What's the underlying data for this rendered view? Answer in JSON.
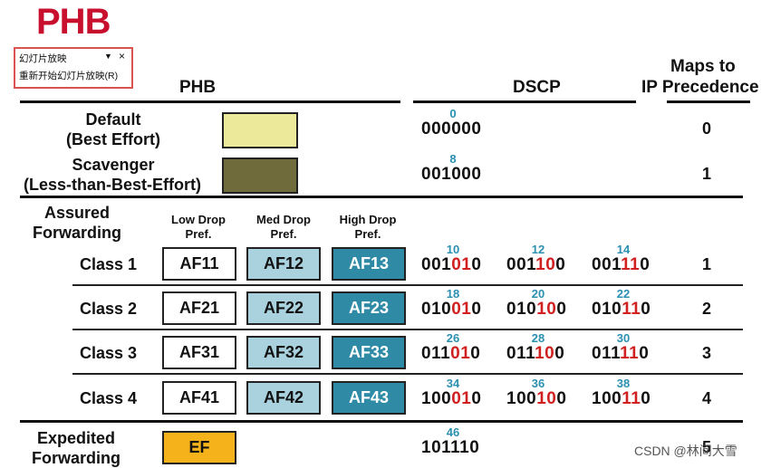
{
  "title": "PHB",
  "popup": {
    "menu": "幻灯片放映",
    "arrow": "▼",
    "close": "×",
    "restart": "重新开始幻灯片放映(R)"
  },
  "headers": {
    "phb": "PHB",
    "dscp": "DSCP",
    "maps1": "Maps to",
    "maps2": "IP Precedence"
  },
  "rows": {
    "default": {
      "l1": "Default",
      "l2": "(Best Effort)",
      "color": "#ece99a",
      "num": "0",
      "bits": "000000",
      "ip": "0"
    },
    "scavenger": {
      "l1": "Scavenger",
      "l2": "(Less-than-Best-Effort)",
      "color": "#6f6b3a",
      "num": "8",
      "bits": "001000",
      "ip": "1"
    }
  },
  "af": {
    "title1": "Assured",
    "title2": "Forwarding",
    "low1": "Low Drop",
    "low2": "Pref.",
    "med1": "Med Drop",
    "med2": "Pref.",
    "high1": "High Drop",
    "high2": "Pref.",
    "classes": [
      {
        "label": "Class 1",
        "low": "AF11",
        "med": "AF12",
        "high": "AF13",
        "n": [
          "10",
          "12",
          "14"
        ],
        "pre": [
          "001",
          "001",
          "001"
        ],
        "red": [
          "01",
          "10",
          "11"
        ],
        "post": [
          "0",
          "0",
          "0"
        ],
        "ip": "1"
      },
      {
        "label": "Class 2",
        "low": "AF21",
        "med": "AF22",
        "high": "AF23",
        "n": [
          "18",
          "20",
          "22"
        ],
        "pre": [
          "010",
          "010",
          "010"
        ],
        "red": [
          "01",
          "10",
          "11"
        ],
        "post": [
          "0",
          "0",
          "0"
        ],
        "ip": "2"
      },
      {
        "label": "Class 3",
        "low": "AF31",
        "med": "AF32",
        "high": "AF33",
        "n": [
          "26",
          "28",
          "30"
        ],
        "pre": [
          "011",
          "011",
          "011"
        ],
        "red": [
          "01",
          "10",
          "11"
        ],
        "post": [
          "0",
          "0",
          "0"
        ],
        "ip": "3"
      },
      {
        "label": "Class 4",
        "low": "AF41",
        "med": "AF42",
        "high": "AF43",
        "n": [
          "34",
          "36",
          "38"
        ],
        "pre": [
          "100",
          "100",
          "100"
        ],
        "red": [
          "01",
          "10",
          "11"
        ],
        "post": [
          "0",
          "0",
          "0"
        ],
        "ip": "4"
      }
    ]
  },
  "ef": {
    "l1": "Expedited",
    "l2": "Forwarding",
    "box": "EF",
    "color": "#f5b21b",
    "num": "46",
    "bits": "101110",
    "ip": "5"
  },
  "watermark": "CSDN @林间大雪"
}
